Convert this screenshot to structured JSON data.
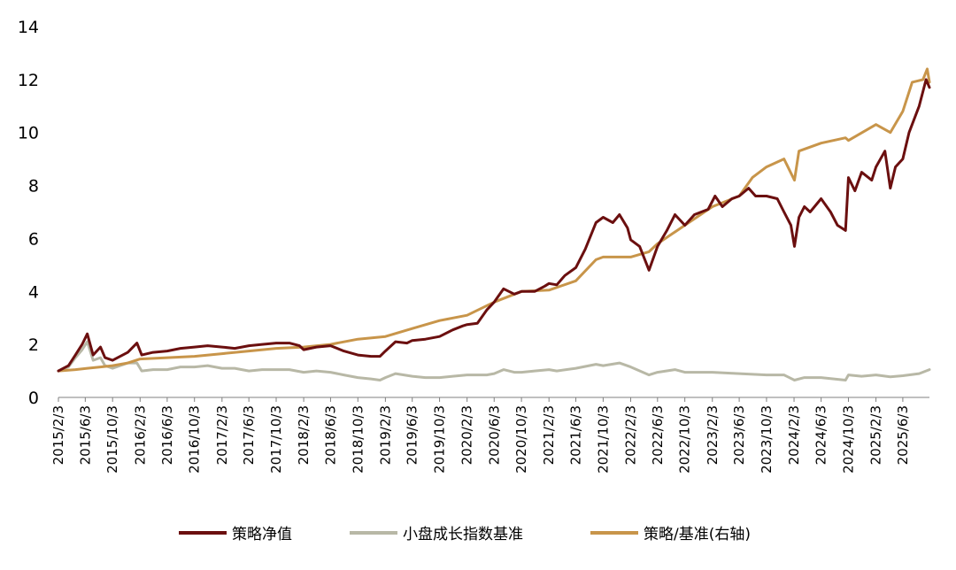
{
  "chart_data": {
    "type": "line",
    "title": "",
    "xlabel": "",
    "ylabel": "",
    "ylim": [
      0,
      14
    ],
    "y_ticks": [
      0,
      2,
      4,
      6,
      8,
      10,
      12,
      14
    ],
    "x_range": [
      "2015-02-03",
      "2025-09-30"
    ],
    "x_tick_labels": [
      "2015/2/3",
      "2015/6/3",
      "2015/10/3",
      "2016/2/3",
      "2016/6/3",
      "2016/10/3",
      "2017/2/3",
      "2017/6/3",
      "2017/10/3",
      "2018/2/3",
      "2018/6/3",
      "2018/10/3",
      "2019/2/3",
      "2019/6/3",
      "2019/10/3",
      "2020/2/3",
      "2020/6/3",
      "2020/10/3",
      "2021/2/3",
      "2021/6/3",
      "2021/10/3",
      "2022/2/3",
      "2022/6/3",
      "2022/10/3",
      "2023/2/3",
      "2023/6/3",
      "2023/10/3",
      "2024/2/3",
      "2024/6/3",
      "2024/10/3",
      "2025/2/3",
      "2025/6/3"
    ],
    "grid": false,
    "legend_position": "bottom",
    "series": [
      {
        "name": "策略净值",
        "color": "#6b0f0f",
        "points": [
          [
            "2015-02-03",
            1.0
          ],
          [
            "2015-03-20",
            1.2
          ],
          [
            "2015-04-20",
            1.6
          ],
          [
            "2015-05-20",
            2.0
          ],
          [
            "2015-06-12",
            2.4
          ],
          [
            "2015-07-08",
            1.6
          ],
          [
            "2015-08-10",
            1.9
          ],
          [
            "2015-08-30",
            1.5
          ],
          [
            "2015-10-03",
            1.4
          ],
          [
            "2015-12-10",
            1.7
          ],
          [
            "2016-01-20",
            2.05
          ],
          [
            "2016-02-10",
            1.6
          ],
          [
            "2016-04-01",
            1.7
          ],
          [
            "2016-06-03",
            1.75
          ],
          [
            "2016-08-01",
            1.85
          ],
          [
            "2016-10-03",
            1.9
          ],
          [
            "2016-12-01",
            1.95
          ],
          [
            "2017-02-03",
            1.9
          ],
          [
            "2017-04-01",
            1.85
          ],
          [
            "2017-06-03",
            1.95
          ],
          [
            "2017-08-01",
            2.0
          ],
          [
            "2017-10-03",
            2.05
          ],
          [
            "2017-12-01",
            2.05
          ],
          [
            "2018-01-15",
            1.95
          ],
          [
            "2018-02-03",
            1.8
          ],
          [
            "2018-04-01",
            1.9
          ],
          [
            "2018-06-03",
            1.95
          ],
          [
            "2018-08-01",
            1.75
          ],
          [
            "2018-10-03",
            1.6
          ],
          [
            "2018-12-01",
            1.55
          ],
          [
            "2019-01-10",
            1.55
          ],
          [
            "2019-02-03",
            1.75
          ],
          [
            "2019-03-20",
            2.1
          ],
          [
            "2019-05-10",
            2.05
          ],
          [
            "2019-06-03",
            2.15
          ],
          [
            "2019-08-01",
            2.2
          ],
          [
            "2019-10-03",
            2.3
          ],
          [
            "2019-12-01",
            2.55
          ],
          [
            "2020-01-15",
            2.7
          ],
          [
            "2020-02-03",
            2.75
          ],
          [
            "2020-03-20",
            2.8
          ],
          [
            "2020-05-01",
            3.3
          ],
          [
            "2020-06-03",
            3.6
          ],
          [
            "2020-07-15",
            4.1
          ],
          [
            "2020-09-01",
            3.9
          ],
          [
            "2020-10-03",
            4.0
          ],
          [
            "2020-12-01",
            4.0
          ],
          [
            "2021-01-15",
            4.2
          ],
          [
            "2021-02-03",
            4.3
          ],
          [
            "2021-03-10",
            4.25
          ],
          [
            "2021-04-15",
            4.6
          ],
          [
            "2021-06-03",
            4.9
          ],
          [
            "2021-07-15",
            5.6
          ],
          [
            "2021-09-01",
            6.6
          ],
          [
            "2021-10-03",
            6.8
          ],
          [
            "2021-11-15",
            6.6
          ],
          [
            "2021-12-15",
            6.9
          ],
          [
            "2022-01-20",
            6.4
          ],
          [
            "2022-02-03",
            5.95
          ],
          [
            "2022-03-15",
            5.7
          ],
          [
            "2022-04-26",
            4.8
          ],
          [
            "2022-06-03",
            5.7
          ],
          [
            "2022-07-15",
            6.3
          ],
          [
            "2022-08-20",
            6.9
          ],
          [
            "2022-10-03",
            6.5
          ],
          [
            "2022-11-15",
            6.9
          ],
          [
            "2023-01-15",
            7.1
          ],
          [
            "2023-02-15",
            7.6
          ],
          [
            "2023-03-20",
            7.2
          ],
          [
            "2023-05-01",
            7.5
          ],
          [
            "2023-06-03",
            7.6
          ],
          [
            "2023-07-15",
            7.9
          ],
          [
            "2023-08-15",
            7.6
          ],
          [
            "2023-10-03",
            7.6
          ],
          [
            "2023-11-20",
            7.5
          ],
          [
            "2023-12-20",
            7.0
          ],
          [
            "2024-01-20",
            6.5
          ],
          [
            "2024-02-05",
            5.7
          ],
          [
            "2024-02-25",
            6.8
          ],
          [
            "2024-03-20",
            7.2
          ],
          [
            "2024-04-15",
            7.0
          ],
          [
            "2024-06-03",
            7.5
          ],
          [
            "2024-07-15",
            7.0
          ],
          [
            "2024-08-15",
            6.5
          ],
          [
            "2024-09-20",
            6.3
          ],
          [
            "2024-10-03",
            8.3
          ],
          [
            "2024-11-01",
            7.8
          ],
          [
            "2024-12-01",
            8.5
          ],
          [
            "2025-01-15",
            8.2
          ],
          [
            "2025-02-03",
            8.7
          ],
          [
            "2025-03-15",
            9.3
          ],
          [
            "2025-04-08",
            7.9
          ],
          [
            "2025-05-01",
            8.7
          ],
          [
            "2025-06-03",
            9.0
          ],
          [
            "2025-07-01",
            10.0
          ],
          [
            "2025-08-15",
            11.0
          ],
          [
            "2025-09-15",
            12.0
          ],
          [
            "2025-09-30",
            11.7
          ]
        ]
      },
      {
        "name": "小盘成长指数基准",
        "color": "#b8b8a6",
        "points": [
          [
            "2015-02-03",
            1.0
          ],
          [
            "2015-03-20",
            1.15
          ],
          [
            "2015-04-20",
            1.5
          ],
          [
            "2015-05-20",
            1.8
          ],
          [
            "2015-06-12",
            2.1
          ],
          [
            "2015-07-08",
            1.4
          ],
          [
            "2015-08-10",
            1.5
          ],
          [
            "2015-08-30",
            1.2
          ],
          [
            "2015-10-03",
            1.1
          ],
          [
            "2015-12-10",
            1.3
          ],
          [
            "2016-01-20",
            1.3
          ],
          [
            "2016-02-10",
            1.0
          ],
          [
            "2016-04-01",
            1.05
          ],
          [
            "2016-06-03",
            1.05
          ],
          [
            "2016-08-01",
            1.15
          ],
          [
            "2016-10-03",
            1.15
          ],
          [
            "2016-12-01",
            1.2
          ],
          [
            "2017-02-03",
            1.1
          ],
          [
            "2017-04-01",
            1.1
          ],
          [
            "2017-06-03",
            1.0
          ],
          [
            "2017-08-01",
            1.05
          ],
          [
            "2017-10-03",
            1.05
          ],
          [
            "2017-12-01",
            1.05
          ],
          [
            "2018-02-03",
            0.95
          ],
          [
            "2018-04-01",
            1.0
          ],
          [
            "2018-06-03",
            0.95
          ],
          [
            "2018-08-01",
            0.85
          ],
          [
            "2018-10-03",
            0.75
          ],
          [
            "2018-12-01",
            0.7
          ],
          [
            "2019-01-10",
            0.65
          ],
          [
            "2019-02-03",
            0.75
          ],
          [
            "2019-03-20",
            0.9
          ],
          [
            "2019-06-03",
            0.8
          ],
          [
            "2019-08-01",
            0.75
          ],
          [
            "2019-10-03",
            0.75
          ],
          [
            "2019-12-01",
            0.8
          ],
          [
            "2020-02-03",
            0.85
          ],
          [
            "2020-03-20",
            0.85
          ],
          [
            "2020-05-01",
            0.85
          ],
          [
            "2020-06-03",
            0.9
          ],
          [
            "2020-07-15",
            1.05
          ],
          [
            "2020-09-01",
            0.95
          ],
          [
            "2020-10-03",
            0.95
          ],
          [
            "2020-12-01",
            1.0
          ],
          [
            "2021-02-03",
            1.05
          ],
          [
            "2021-03-10",
            1.0
          ],
          [
            "2021-06-03",
            1.1
          ],
          [
            "2021-09-01",
            1.25
          ],
          [
            "2021-10-03",
            1.2
          ],
          [
            "2021-12-15",
            1.3
          ],
          [
            "2022-02-03",
            1.15
          ],
          [
            "2022-04-26",
            0.85
          ],
          [
            "2022-06-03",
            0.95
          ],
          [
            "2022-08-20",
            1.05
          ],
          [
            "2022-10-03",
            0.95
          ],
          [
            "2022-11-15",
            0.95
          ],
          [
            "2023-02-03",
            0.95
          ],
          [
            "2023-06-03",
            0.9
          ],
          [
            "2023-10-03",
            0.85
          ],
          [
            "2023-12-20",
            0.85
          ],
          [
            "2024-02-05",
            0.65
          ],
          [
            "2024-03-20",
            0.75
          ],
          [
            "2024-06-03",
            0.75
          ],
          [
            "2024-09-20",
            0.65
          ],
          [
            "2024-10-03",
            0.85
          ],
          [
            "2024-12-01",
            0.8
          ],
          [
            "2025-02-03",
            0.85
          ],
          [
            "2025-04-08",
            0.78
          ],
          [
            "2025-06-03",
            0.82
          ],
          [
            "2025-08-15",
            0.9
          ],
          [
            "2025-09-30",
            1.05
          ]
        ]
      },
      {
        "name": "策略/基准(右轴)",
        "color": "#c8954a",
        "points": [
          [
            "2015-02-03",
            1.0
          ],
          [
            "2015-04-20",
            1.05
          ],
          [
            "2015-06-12",
            1.1
          ],
          [
            "2015-08-10",
            1.15
          ],
          [
            "2015-10-03",
            1.2
          ],
          [
            "2015-12-10",
            1.3
          ],
          [
            "2016-02-03",
            1.45
          ],
          [
            "2016-06-03",
            1.5
          ],
          [
            "2016-10-03",
            1.55
          ],
          [
            "2017-02-03",
            1.65
          ],
          [
            "2017-06-03",
            1.75
          ],
          [
            "2017-10-03",
            1.85
          ],
          [
            "2018-02-03",
            1.9
          ],
          [
            "2018-06-03",
            2.0
          ],
          [
            "2018-10-03",
            2.2
          ],
          [
            "2019-02-03",
            2.3
          ],
          [
            "2019-06-03",
            2.6
          ],
          [
            "2019-10-03",
            2.9
          ],
          [
            "2020-02-03",
            3.1
          ],
          [
            "2020-06-03",
            3.6
          ],
          [
            "2020-10-03",
            4.0
          ],
          [
            "2021-02-03",
            4.05
          ],
          [
            "2021-06-03",
            4.4
          ],
          [
            "2021-09-01",
            5.2
          ],
          [
            "2021-10-03",
            5.3
          ],
          [
            "2022-02-03",
            5.3
          ],
          [
            "2022-04-26",
            5.5
          ],
          [
            "2022-06-03",
            5.8
          ],
          [
            "2022-10-03",
            6.5
          ],
          [
            "2023-02-03",
            7.2
          ],
          [
            "2023-06-03",
            7.6
          ],
          [
            "2023-08-01",
            8.3
          ],
          [
            "2023-10-03",
            8.7
          ],
          [
            "2023-12-20",
            9.0
          ],
          [
            "2024-02-05",
            8.2
          ],
          [
            "2024-02-25",
            9.3
          ],
          [
            "2024-06-03",
            9.6
          ],
          [
            "2024-09-20",
            9.8
          ],
          [
            "2024-10-03",
            9.7
          ],
          [
            "2025-02-03",
            10.3
          ],
          [
            "2025-04-08",
            10.0
          ],
          [
            "2025-06-03",
            10.8
          ],
          [
            "2025-07-15",
            11.9
          ],
          [
            "2025-09-01",
            12.0
          ],
          [
            "2025-09-20",
            12.4
          ],
          [
            "2025-09-30",
            11.9
          ]
        ]
      }
    ]
  }
}
